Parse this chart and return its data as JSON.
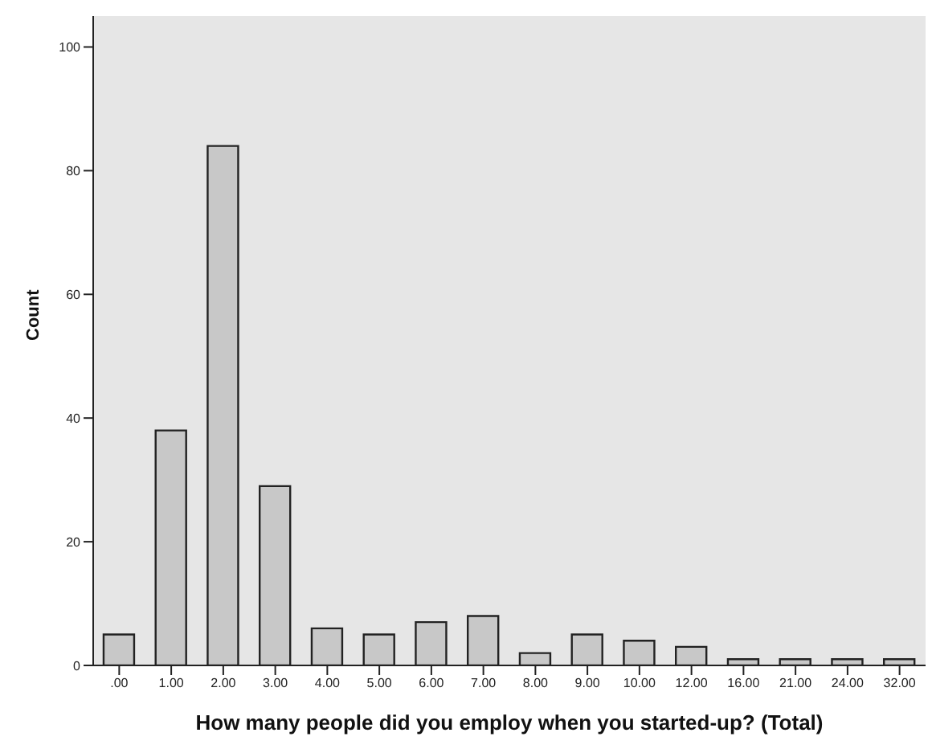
{
  "chart_data": {
    "type": "bar",
    "xlabel": "How many people did you employ when you started-up? (Total)",
    "ylabel": "Count",
    "categories": [
      ".00",
      "1.00",
      "2.00",
      "3.00",
      "4.00",
      "5.00",
      "6.00",
      "7.00",
      "8.00",
      "9.00",
      "10.00",
      "12.00",
      "16.00",
      "21.00",
      "24.00",
      "32.00"
    ],
    "values": [
      5,
      38,
      84,
      29,
      6,
      5,
      7,
      8,
      2,
      5,
      4,
      3,
      1,
      1,
      1,
      1
    ],
    "color": "#c8c8c8",
    "ylim": [
      0,
      105
    ],
    "yticks": [
      0,
      20,
      40,
      60,
      80,
      100
    ],
    "grid": false,
    "legend": false
  }
}
